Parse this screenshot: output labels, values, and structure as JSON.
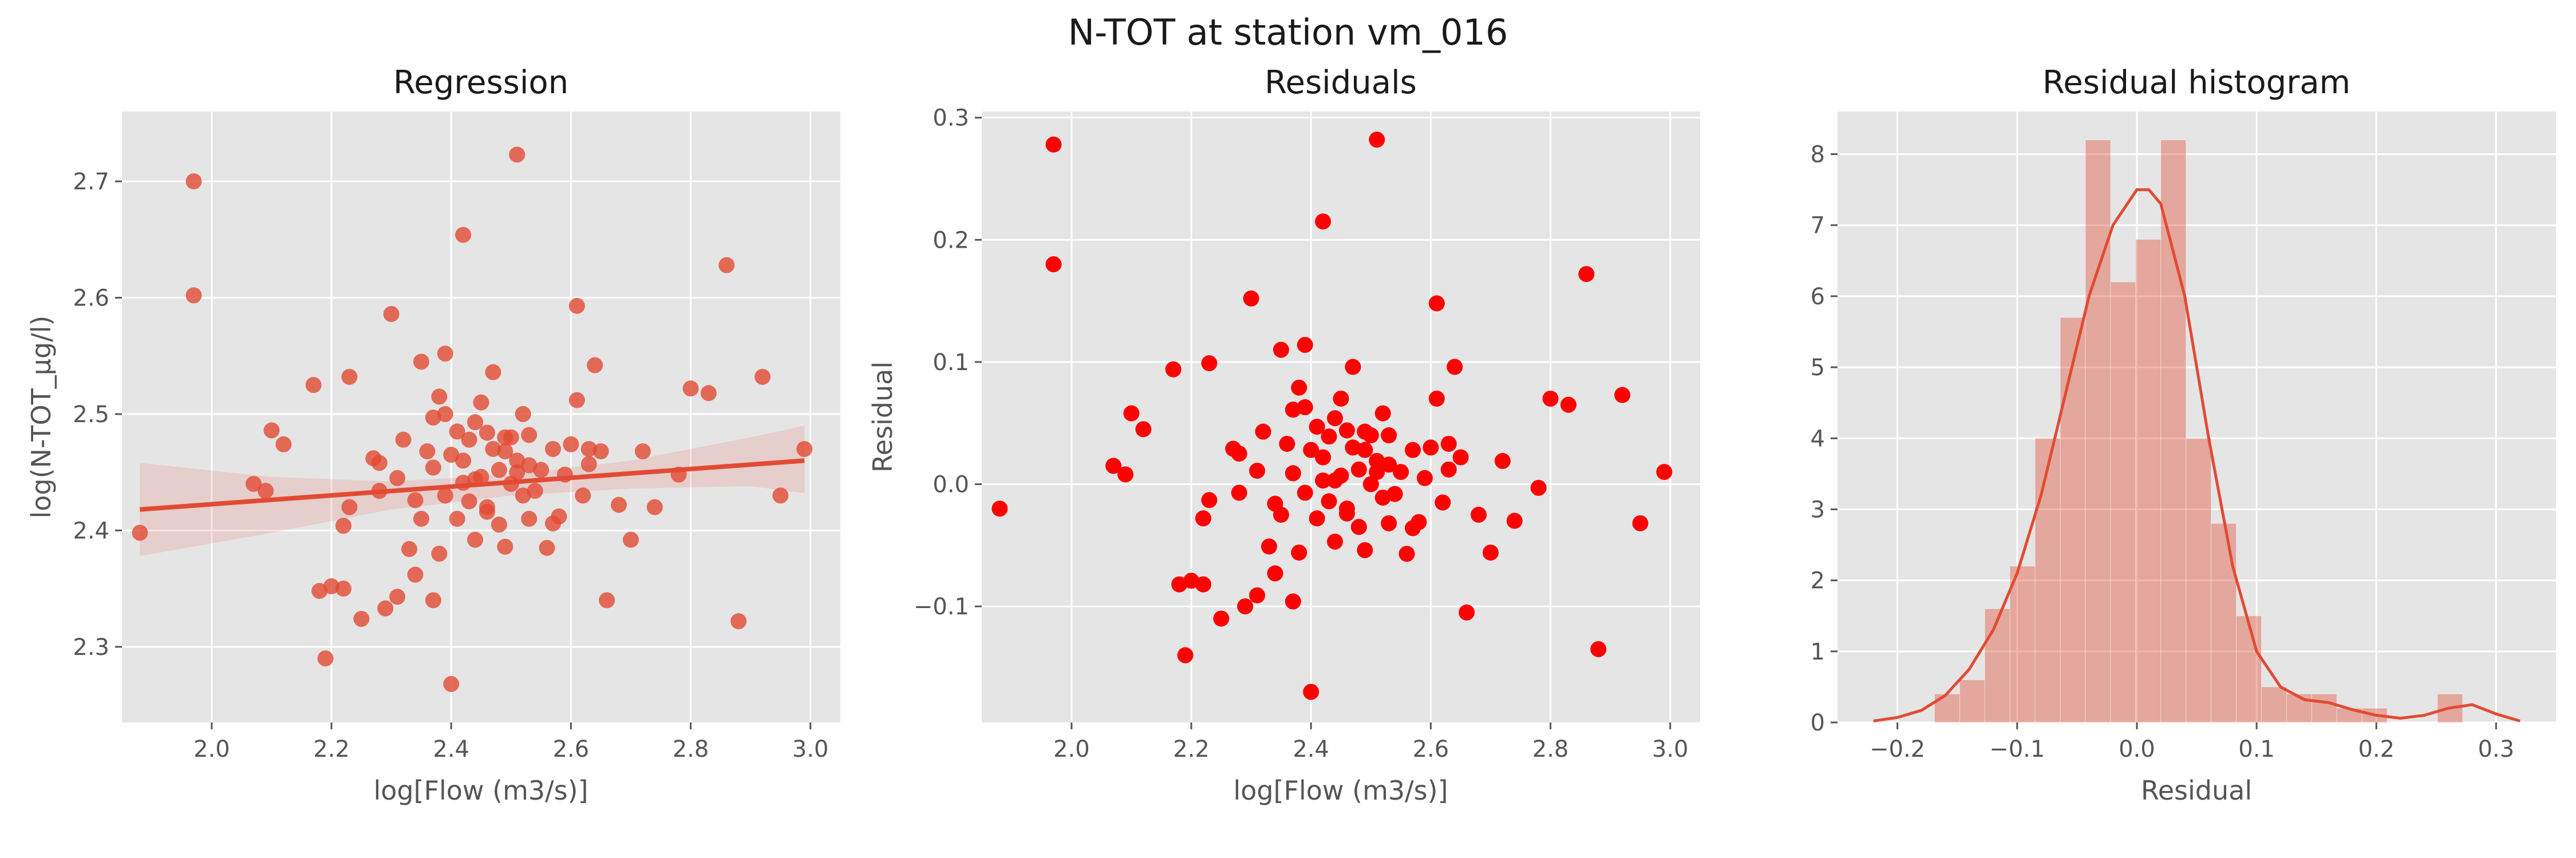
{
  "figure": {
    "title": "N-TOT at station vm_016"
  },
  "colors": {
    "accent": "#e24a33",
    "red": "#ff0000",
    "panel_bg": "#e5e5e5",
    "hist_fill": "#e24a33"
  },
  "chart_data": [
    {
      "type": "scatter",
      "title": "Regression",
      "xlabel": "log[Flow (m3/s)]",
      "ylabel": "log(N-TOT_µg/l)",
      "xlim": [
        1.85,
        3.05
      ],
      "ylim": [
        2.235,
        2.76
      ],
      "xticks": [
        2.0,
        2.2,
        2.4,
        2.6,
        2.8,
        3.0
      ],
      "xtick_labels": [
        "2.0",
        "2.2",
        "2.4",
        "2.6",
        "2.8",
        "3.0"
      ],
      "yticks": [
        2.3,
        2.4,
        2.5,
        2.6,
        2.7
      ],
      "ytick_labels": [
        "2.3",
        "2.4",
        "2.5",
        "2.6",
        "2.7"
      ],
      "grid": true,
      "regression_line": {
        "x": [
          1.88,
          2.99
        ],
        "y": [
          2.418,
          2.46
        ]
      },
      "confidence_band": {
        "x": [
          1.88,
          2.1,
          2.3,
          2.5,
          2.7,
          2.9,
          2.99
        ],
        "upper": [
          2.458,
          2.446,
          2.442,
          2.448,
          2.46,
          2.48,
          2.49
        ],
        "lower": [
          2.378,
          2.398,
          2.418,
          2.43,
          2.436,
          2.438,
          2.432
        ]
      },
      "points": {
        "x": [
          1.88,
          1.97,
          1.97,
          2.07,
          2.09,
          2.1,
          2.12,
          2.17,
          2.18,
          2.19,
          2.2,
          2.22,
          2.22,
          2.23,
          2.23,
          2.25,
          2.27,
          2.28,
          2.29,
          2.3,
          2.31,
          2.31,
          2.32,
          2.33,
          2.34,
          2.35,
          2.35,
          2.36,
          2.37,
          2.37,
          2.38,
          2.38,
          2.39,
          2.39,
          2.4,
          2.4,
          2.41,
          2.41,
          2.42,
          2.42,
          2.43,
          2.43,
          2.44,
          2.44,
          2.45,
          2.45,
          2.46,
          2.46,
          2.47,
          2.47,
          2.48,
          2.48,
          2.49,
          2.49,
          2.5,
          2.5,
          2.51,
          2.51,
          2.52,
          2.52,
          2.53,
          2.53,
          2.54,
          2.55,
          2.56,
          2.57,
          2.58,
          2.59,
          2.6,
          2.61,
          2.62,
          2.63,
          2.64,
          2.65,
          2.66,
          2.68,
          2.7,
          2.72,
          2.74,
          2.78,
          2.8,
          2.83,
          2.86,
          2.88,
          2.92,
          2.95,
          2.99,
          2.42,
          2.51,
          2.61,
          2.37,
          2.44,
          2.28,
          2.34,
          2.46,
          2.57,
          2.63,
          2.49,
          2.39,
          2.53
        ],
        "y": [
          2.398,
          2.7,
          2.602,
          2.44,
          2.434,
          2.486,
          2.474,
          2.525,
          2.348,
          2.29,
          2.352,
          2.404,
          2.35,
          2.42,
          2.532,
          2.324,
          2.462,
          2.458,
          2.333,
          2.586,
          2.343,
          2.445,
          2.478,
          2.384,
          2.362,
          2.41,
          2.545,
          2.468,
          2.34,
          2.497,
          2.515,
          2.38,
          2.43,
          2.552,
          2.268,
          2.465,
          2.485,
          2.41,
          2.441,
          2.654,
          2.425,
          2.478,
          2.493,
          2.392,
          2.446,
          2.51,
          2.42,
          2.484,
          2.47,
          2.536,
          2.405,
          2.452,
          2.468,
          2.386,
          2.44,
          2.48,
          2.723,
          2.46,
          2.43,
          2.5,
          2.482,
          2.41,
          2.434,
          2.452,
          2.385,
          2.47,
          2.412,
          2.448,
          2.474,
          2.593,
          2.43,
          2.457,
          2.542,
          2.468,
          2.34,
          2.422,
          2.392,
          2.468,
          2.42,
          2.448,
          2.522,
          2.518,
          2.628,
          2.322,
          2.532,
          2.43,
          2.47,
          2.46,
          2.45,
          2.512,
          2.454,
          2.444,
          2.434,
          2.426,
          2.416,
          2.406,
          2.47,
          2.48,
          2.5,
          2.456
        ]
      }
    },
    {
      "type": "scatter",
      "title": "Residuals",
      "xlabel": "log[Flow (m3/s)]",
      "ylabel": "Residual",
      "xlim": [
        1.85,
        3.05
      ],
      "ylim": [
        -0.195,
        0.305
      ],
      "xticks": [
        2.0,
        2.2,
        2.4,
        2.6,
        2.8,
        3.0
      ],
      "xtick_labels": [
        "2.0",
        "2.2",
        "2.4",
        "2.6",
        "2.8",
        "3.0"
      ],
      "yticks": [
        -0.1,
        0.0,
        0.1,
        0.2,
        0.3
      ],
      "ytick_labels": [
        "−0.1",
        "0.0",
        "0.1",
        "0.2",
        "0.3"
      ],
      "grid": true,
      "points": {
        "x": [
          1.88,
          1.97,
          1.97,
          2.07,
          2.09,
          2.1,
          2.12,
          2.17,
          2.18,
          2.19,
          2.2,
          2.22,
          2.22,
          2.23,
          2.23,
          2.25,
          2.27,
          2.28,
          2.29,
          2.3,
          2.31,
          2.31,
          2.32,
          2.33,
          2.34,
          2.35,
          2.35,
          2.36,
          2.37,
          2.37,
          2.38,
          2.38,
          2.39,
          2.39,
          2.4,
          2.4,
          2.41,
          2.41,
          2.42,
          2.42,
          2.43,
          2.43,
          2.44,
          2.44,
          2.45,
          2.45,
          2.46,
          2.46,
          2.47,
          2.47,
          2.48,
          2.48,
          2.49,
          2.49,
          2.5,
          2.5,
          2.51,
          2.51,
          2.52,
          2.52,
          2.53,
          2.53,
          2.54,
          2.55,
          2.56,
          2.57,
          2.58,
          2.59,
          2.6,
          2.61,
          2.62,
          2.63,
          2.64,
          2.65,
          2.66,
          2.68,
          2.7,
          2.72,
          2.74,
          2.78,
          2.8,
          2.83,
          2.86,
          2.88,
          2.92,
          2.95,
          2.99,
          2.42,
          2.51,
          2.61,
          2.37,
          2.44,
          2.28,
          2.34,
          2.46,
          2.57,
          2.63,
          2.49,
          2.39,
          2.53
        ],
        "y": [
          -0.02,
          0.278,
          0.18,
          0.015,
          0.008,
          0.058,
          0.045,
          0.094,
          -0.082,
          -0.14,
          -0.079,
          -0.028,
          -0.082,
          -0.013,
          0.099,
          -0.11,
          0.029,
          0.025,
          -0.1,
          0.152,
          -0.091,
          0.011,
          0.043,
          -0.051,
          -0.073,
          -0.025,
          0.11,
          0.033,
          -0.096,
          0.061,
          0.079,
          -0.056,
          -0.007,
          0.114,
          -0.17,
          0.028,
          0.047,
          -0.028,
          0.003,
          0.215,
          -0.014,
          0.039,
          0.054,
          -0.047,
          0.007,
          0.07,
          -0.02,
          0.044,
          0.03,
          0.096,
          -0.035,
          0.012,
          0.028,
          -0.054,
          0.0,
          0.04,
          0.282,
          0.019,
          -0.011,
          0.058,
          0.04,
          -0.032,
          -0.008,
          0.01,
          -0.057,
          0.028,
          -0.031,
          0.005,
          0.03,
          0.148,
          -0.015,
          0.012,
          0.096,
          0.022,
          -0.105,
          -0.025,
          -0.056,
          0.019,
          -0.03,
          -0.003,
          0.07,
          0.065,
          0.172,
          -0.135,
          0.073,
          -0.032,
          0.01,
          0.022,
          0.01,
          0.07,
          0.009,
          0.003,
          -0.007,
          -0.016,
          -0.024,
          -0.036,
          0.033,
          0.043,
          0.063,
          0.016
        ]
      }
    },
    {
      "type": "histogram",
      "title": "Residual histogram",
      "xlabel": "Residual",
      "ylabel": "",
      "xlim": [
        -0.25,
        0.35
      ],
      "ylim": [
        0,
        8.6
      ],
      "xticks": [
        -0.2,
        -0.1,
        0.0,
        0.1,
        0.2,
        0.3
      ],
      "xtick_labels": [
        "−0.2",
        "−0.1",
        "0.0",
        "0.1",
        "0.2",
        "0.3"
      ],
      "yticks": [
        0,
        1,
        2,
        3,
        4,
        5,
        6,
        7,
        8
      ],
      "ytick_labels": [
        "0",
        "1",
        "2",
        "3",
        "4",
        "5",
        "6",
        "7",
        "8"
      ],
      "grid": true,
      "bin_edges": [
        -0.169,
        -0.148,
        -0.127,
        -0.106,
        -0.085,
        -0.064,
        -0.043,
        -0.022,
        -0.001,
        0.02,
        0.041,
        0.062,
        0.083,
        0.104,
        0.125,
        0.146,
        0.167,
        0.188,
        0.209,
        0.23,
        0.251,
        0.272,
        0.293
      ],
      "bin_values": [
        0.4,
        0.6,
        1.6,
        2.2,
        4.0,
        5.7,
        8.2,
        6.2,
        6.8,
        8.2,
        4.0,
        2.8,
        1.5,
        0.5,
        0.4,
        0.4,
        0.2,
        0.2,
        0.0,
        0.0,
        0.4,
        0.0
      ],
      "kde": {
        "x": [
          -0.22,
          -0.2,
          -0.18,
          -0.16,
          -0.14,
          -0.12,
          -0.1,
          -0.08,
          -0.06,
          -0.04,
          -0.02,
          0.0,
          0.01,
          0.02,
          0.04,
          0.06,
          0.08,
          0.1,
          0.12,
          0.14,
          0.16,
          0.18,
          0.2,
          0.22,
          0.24,
          0.26,
          0.28,
          0.3,
          0.32
        ],
        "y": [
          0.02,
          0.07,
          0.17,
          0.38,
          0.75,
          1.3,
          2.1,
          3.2,
          4.6,
          6.0,
          7.0,
          7.5,
          7.5,
          7.3,
          6.0,
          4.0,
          2.2,
          1.0,
          0.5,
          0.32,
          0.28,
          0.18,
          0.1,
          0.06,
          0.1,
          0.2,
          0.25,
          0.12,
          0.02
        ]
      }
    }
  ]
}
